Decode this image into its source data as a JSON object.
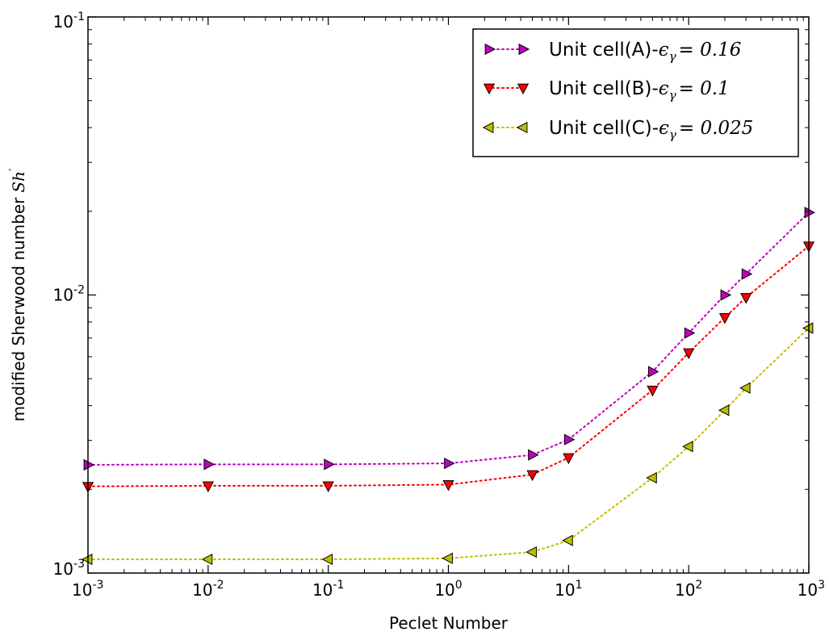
{
  "chart_data": {
    "type": "line",
    "title": "",
    "xlabel": "Peclet Number",
    "ylabel": "modified Sherwood number",
    "ylabel_symbol": "Sh",
    "ylabel_symbol_prime": "′",
    "x_scale": "log",
    "y_scale": "log",
    "xlim": [
      0.001,
      1000
    ],
    "ylim": [
      0.001,
      0.1
    ],
    "x_ticks": [
      {
        "value": 0.001,
        "base": "10",
        "exp": "-3"
      },
      {
        "value": 0.01,
        "base": "10",
        "exp": "-2"
      },
      {
        "value": 0.1,
        "base": "10",
        "exp": "-1"
      },
      {
        "value": 1,
        "base": "10",
        "exp": "0"
      },
      {
        "value": 10,
        "base": "10",
        "exp": "1"
      },
      {
        "value": 100,
        "base": "10",
        "exp": "2"
      },
      {
        "value": 1000,
        "base": "10",
        "exp": "3"
      }
    ],
    "y_ticks": [
      {
        "value": 0.001,
        "base": "10",
        "exp": "-3"
      },
      {
        "value": 0.01,
        "base": "10",
        "exp": "-2"
      },
      {
        "value": 0.1,
        "base": "10",
        "exp": "-1"
      }
    ],
    "grid": false,
    "legend_position": "top-right",
    "x": [
      0.001,
      0.01,
      0.1,
      1,
      5,
      10,
      50,
      100,
      200,
      300,
      1000
    ],
    "series": [
      {
        "name": "Unit cell(A)-",
        "eps_value": "0.16",
        "color": "#bf00bf",
        "marker": "triangle-right",
        "values": [
          0.00245,
          0.00246,
          0.00246,
          0.00248,
          0.00266,
          0.00302,
          0.0053,
          0.0073,
          0.01,
          0.0119,
          0.0198
        ]
      },
      {
        "name": "Unit cell(B)-",
        "eps_value": "0.1",
        "color": "#ff0000",
        "marker": "triangle-down",
        "values": [
          0.00205,
          0.00206,
          0.00206,
          0.00208,
          0.00226,
          0.0026,
          0.00455,
          0.0062,
          0.0083,
          0.0098,
          0.015
        ]
      },
      {
        "name": "Unit cell(C)-",
        "eps_value": "0.025",
        "color": "#bfbf00",
        "marker": "triangle-left",
        "values": [
          0.00112,
          0.00112,
          0.00112,
          0.00113,
          0.00119,
          0.00131,
          0.0022,
          0.00285,
          0.00385,
          0.00463,
          0.0076
        ]
      }
    ]
  }
}
